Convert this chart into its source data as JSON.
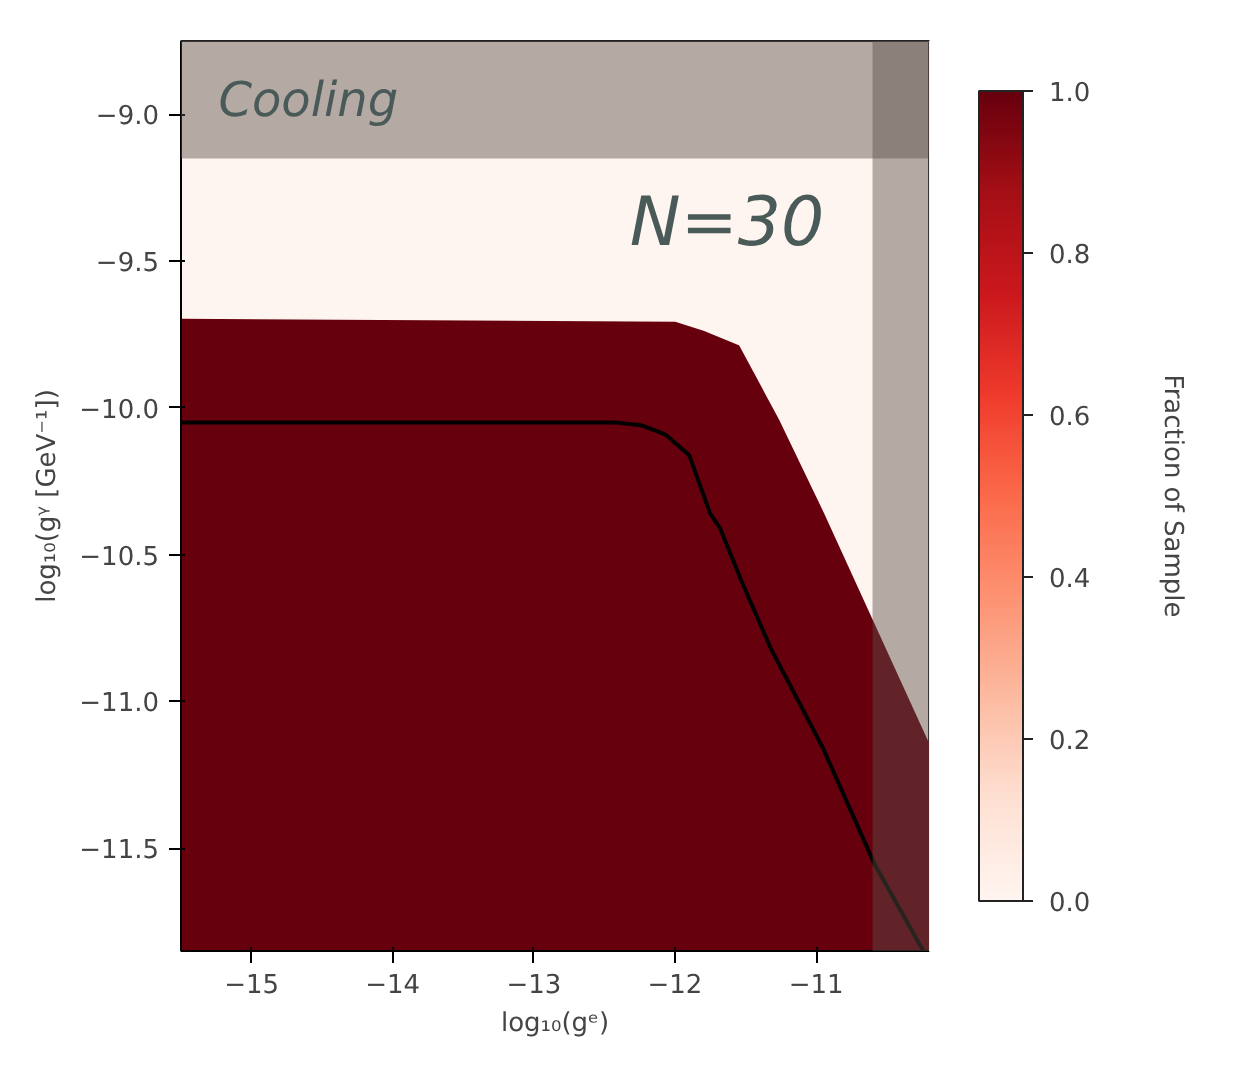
{
  "chart_data": {
    "type": "area",
    "xlabel": "log₁₀(gᵉ)",
    "ylabel": "log₁₀(gᵞ [GeV⁻¹])",
    "clabel": "Fraction of Sample",
    "annotations": [
      "N=30"
    ],
    "xlim": [
      -15.5,
      -10.2
    ],
    "ylim": [
      -11.85,
      -8.75
    ],
    "xticks": [
      {
        "value": -15,
        "label": "−15"
      },
      {
        "value": -14,
        "label": "−14"
      },
      {
        "value": -13,
        "label": "−13"
      },
      {
        "value": -12,
        "label": "−12"
      },
      {
        "value": -11,
        "label": "−11"
      }
    ],
    "yticks": [
      {
        "value": -11.5,
        "label": "−11.5"
      },
      {
        "value": -11,
        "label": "−11.0"
      },
      {
        "value": -10.5,
        "label": "−10.5"
      },
      {
        "value": -10,
        "label": "−10.0"
      },
      {
        "value": -9.5,
        "label": "−9.5"
      },
      {
        "value": -9,
        "label": "−9.0"
      }
    ],
    "clim": [
      0,
      1
    ],
    "cticks": [
      {
        "value": 0,
        "label": "0.0"
      },
      {
        "value": 0.2,
        "label": "0.2"
      },
      {
        "value": 0.4,
        "label": "0.4"
      },
      {
        "value": 0.6,
        "label": "0.6"
      },
      {
        "value": 0.8,
        "label": "0.8"
      },
      {
        "value": 1,
        "label": "1.0"
      }
    ],
    "grid": false,
    "bands": [
      {
        "axis": "y",
        "from": -9.15,
        "to": -8.75,
        "label": "Cooling",
        "color": "#5a4d48"
      },
      {
        "axis": "x",
        "from": -10.6,
        "to": -10.2,
        "color": "#5a4d48"
      }
    ],
    "series": [
      {
        "color": "#67000d",
        "x": [
          -15.5,
          -12.0,
          -11.8,
          -11.55,
          -11.27,
          -10.95,
          -10.2
        ],
        "values": [
          -9.7,
          -9.71,
          -9.74,
          -9.79,
          -10.04,
          -10.36,
          -11.15
        ]
      },
      {
        "type": "line",
        "color": "#000000",
        "x": [
          -15.5,
          -12.41,
          -12.23,
          -12.07,
          -11.9,
          -11.75,
          -11.68,
          -11.52,
          -11.32,
          -10.95,
          -10.59,
          -10.24
        ],
        "values": [
          -10.05,
          -10.05,
          -10.06,
          -10.09,
          -10.16,
          -10.36,
          -10.41,
          -10.6,
          -10.82,
          -11.16,
          -11.55,
          -11.85
        ]
      }
    ]
  }
}
